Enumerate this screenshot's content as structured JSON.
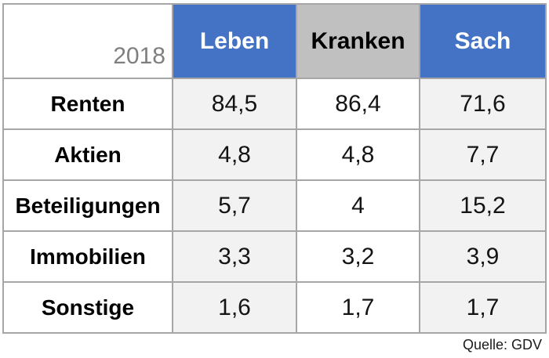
{
  "colors": {
    "header_blue": "#4472c4",
    "header_gray": "#c0c0c0",
    "cell_light_gray": "#f2f2f2",
    "cell_white": "#ffffff",
    "border_gray": "#a6a6a6",
    "year_text_gray": "#7f7f7f"
  },
  "chart_data": {
    "type": "table",
    "corner_label": "2018",
    "columns": [
      "Leben",
      "Kranken",
      "Sach"
    ],
    "rows": [
      {
        "label": "Renten",
        "values": [
          "84,5",
          "86,4",
          "71,6"
        ]
      },
      {
        "label": "Aktien",
        "values": [
          "4,8",
          "4,8",
          "7,7"
        ]
      },
      {
        "label": "Beteiligungen",
        "values": [
          "5,7",
          "4",
          "15,2"
        ]
      },
      {
        "label": "Immobilien",
        "values": [
          "3,3",
          "3,2",
          "3,9"
        ]
      },
      {
        "label": "Sonstige",
        "values": [
          "1,6",
          "1,7",
          "1,7"
        ]
      }
    ],
    "source": "Quelle: GDV"
  },
  "footer": {
    "source": "Quelle: GDV"
  }
}
